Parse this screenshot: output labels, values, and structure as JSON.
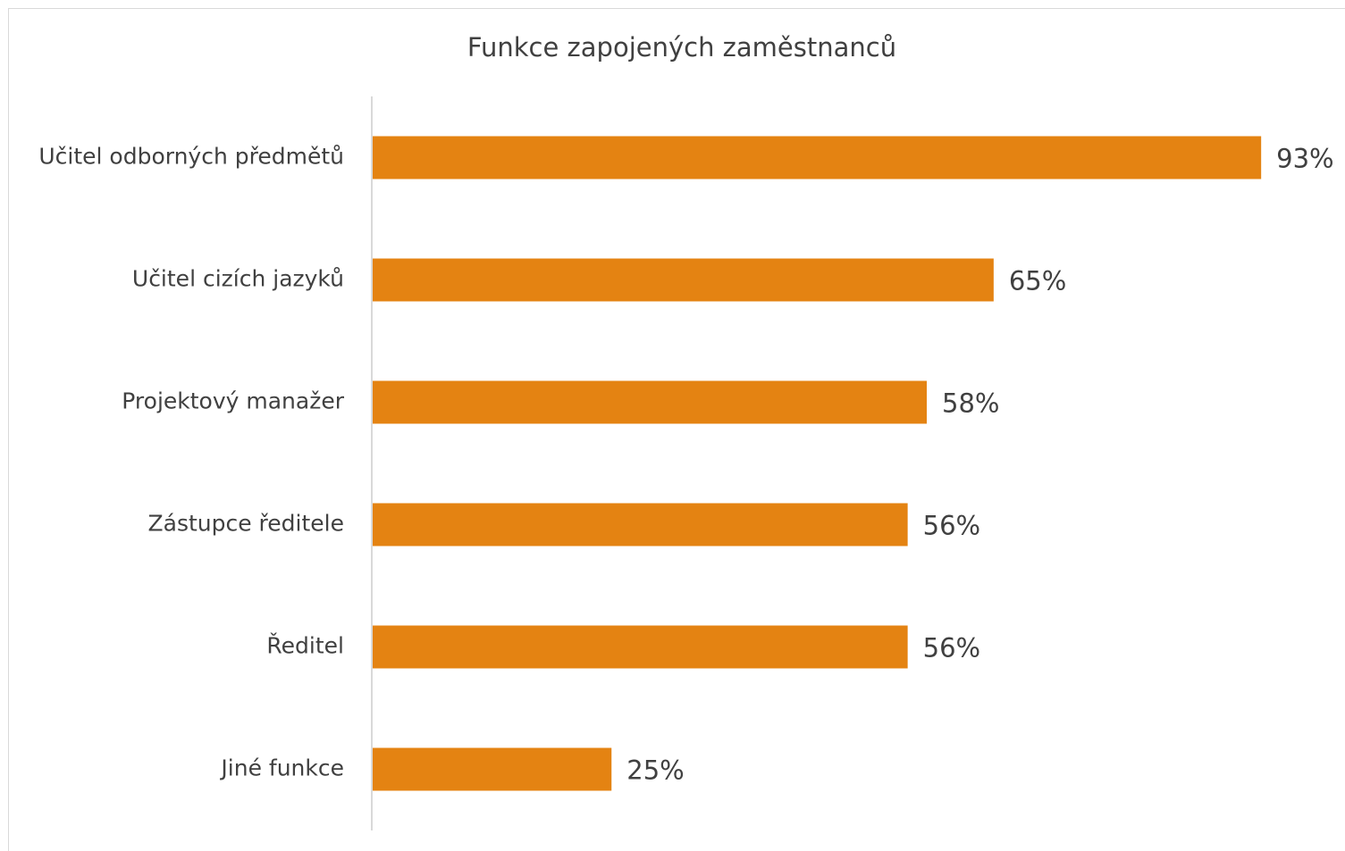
{
  "chart_data": {
    "type": "bar",
    "orientation": "horizontal",
    "title": "Funkce zapojených zaměstnanců",
    "categories": [
      "Učitel odborných předmětů",
      "Učitel cizích jazyků",
      "Projektový manažer",
      "Zástupce ředitele",
      "Ředitel",
      "Jiné funkce"
    ],
    "values": [
      93,
      65,
      58,
      56,
      56,
      25
    ],
    "value_labels": [
      "93%",
      "65%",
      "58%",
      "56%",
      "56%",
      "25%"
    ],
    "color": "#e48312",
    "xlim": [
      0,
      100
    ]
  }
}
